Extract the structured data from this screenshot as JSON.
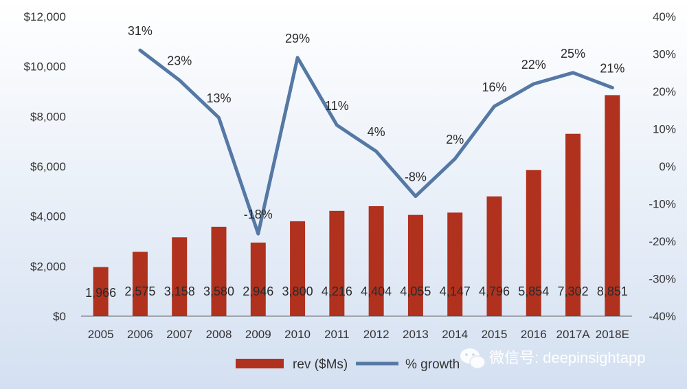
{
  "chart_data": {
    "type": "bar",
    "categories": [
      "2005",
      "2006",
      "2007",
      "2008",
      "2009",
      "2010",
      "2011",
      "2012",
      "2013",
      "2014",
      "2015",
      "2016",
      "2017A",
      "2018E"
    ],
    "series": [
      {
        "name": "rev ($Ms)",
        "type": "bar",
        "axis": "left",
        "values": [
          1966,
          2575,
          3158,
          3580,
          2946,
          3800,
          4216,
          4404,
          4055,
          4147,
          4796,
          5854,
          7302,
          8851
        ],
        "labels": [
          "1,966",
          "2,575",
          "3,158",
          "3,580",
          "2,946",
          "3,800",
          "4,216",
          "4,404",
          "4,055",
          "4,147",
          "4,796",
          "5,854",
          "7,302",
          "8,851"
        ]
      },
      {
        "name": "% growth",
        "type": "line",
        "axis": "right",
        "values": [
          null,
          31,
          23,
          13,
          -18,
          29,
          11,
          4,
          -8,
          2,
          16,
          22,
          25,
          21
        ],
        "labels": [
          "",
          "31%",
          "23%",
          "13%",
          "-18%",
          "29%",
          "11%",
          "4%",
          "-8%",
          "2%",
          "16%",
          "22%",
          "25%",
          "21%"
        ]
      }
    ],
    "y_left": {
      "min": 0,
      "max": 12000,
      "ticks": [
        "$0",
        "$2,000",
        "$4,000",
        "$6,000",
        "$8,000",
        "$10,000",
        "$12,000"
      ]
    },
    "y_right": {
      "min": -40,
      "max": 40,
      "ticks": [
        "-40%",
        "-30%",
        "-20%",
        "-10%",
        "0%",
        "10%",
        "20%",
        "30%",
        "40%"
      ]
    },
    "grid": false,
    "legend_position": "bottom-center",
    "colors": {
      "bar": "#b0311e",
      "line": "#5578a4"
    }
  },
  "watermark": {
    "text": "微信号: deepinsightapp"
  }
}
